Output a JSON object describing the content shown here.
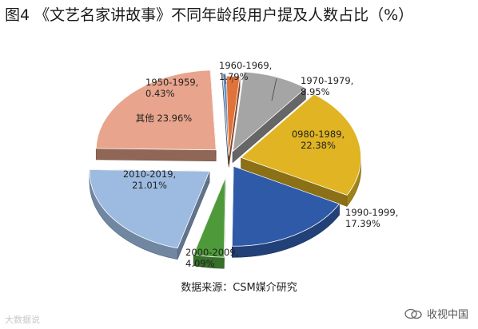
{
  "chart_data": {
    "type": "pie",
    "title": "图4 《文艺名家讲故事》不同年龄段用户提及人数占比（%）",
    "categories": [
      "1960-1969,",
      "1970-1979,",
      "0980-1989,",
      "1990-1999,",
      "2000-2009,",
      "2010-2019,",
      "其他",
      "1950-1959,"
    ],
    "values": [
      1.79,
      8.95,
      22.38,
      17.39,
      4.09,
      21.01,
      23.96,
      0.43
    ],
    "value_labels": [
      "1.79%",
      "8.95%",
      "22.38%",
      "17.39%",
      "4.09%",
      "21.01%",
      "23.96%",
      "0.43%"
    ],
    "colors": [
      "#e0733a",
      "#a5a5a5",
      "#e0b422",
      "#2f5aa8",
      "#4e9a3a",
      "#9dbbe0",
      "#e8a48c",
      "#5b8fd0"
    ]
  },
  "source": "数据来源：CSM媒介研究",
  "watermark_left": "大数据说",
  "watermark_right": "收视中国"
}
